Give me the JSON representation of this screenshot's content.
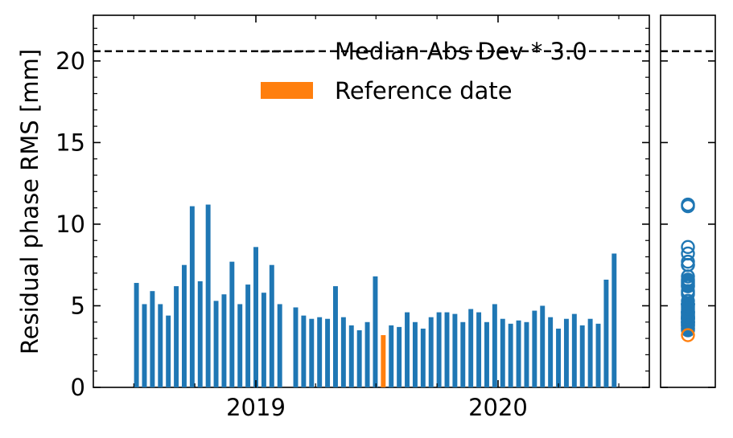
{
  "chart_data": {
    "type": "bar",
    "ylabel": "Residual phase RMS [mm]",
    "xlabel": "",
    "ylim": [
      0,
      22.8
    ],
    "xlim": [
      "2018-05-01",
      "2020-08-16"
    ],
    "yticks": [
      0,
      5,
      10,
      15,
      20
    ],
    "xticks": [
      {
        "label": "2019",
        "date": "2019-01-01"
      },
      {
        "label": "2020",
        "date": "2020-01-01"
      }
    ],
    "grid": false,
    "legend_position": "top-right",
    "threshold": {
      "name": "Median Abs Dev * 3.0",
      "value": 20.6,
      "style": "dashed",
      "color": "#000000"
    },
    "reference": {
      "name": "Reference date",
      "date": "2019-07-12",
      "value": 3.2,
      "color": "#ff7f0e"
    },
    "series": [
      {
        "color": "#1f77b4",
        "points": [
          [
            "2018-07-05",
            6.4
          ],
          [
            "2018-07-17",
            5.1
          ],
          [
            "2018-07-29",
            5.9
          ],
          [
            "2018-08-10",
            5.1
          ],
          [
            "2018-08-22",
            4.4
          ],
          [
            "2018-09-03",
            6.2
          ],
          [
            "2018-09-15",
            7.5
          ],
          [
            "2018-09-27",
            11.1
          ],
          [
            "2018-10-09",
            6.5
          ],
          [
            "2018-10-21",
            11.2
          ],
          [
            "2018-11-02",
            5.3
          ],
          [
            "2018-11-14",
            5.7
          ],
          [
            "2018-11-26",
            7.7
          ],
          [
            "2018-12-08",
            5.1
          ],
          [
            "2018-12-20",
            6.3
          ],
          [
            "2019-01-01",
            8.6
          ],
          [
            "2019-01-13",
            5.8
          ],
          [
            "2019-01-25",
            7.5
          ],
          [
            "2019-02-06",
            5.1
          ],
          [
            "2019-03-02",
            4.9
          ],
          [
            "2019-03-14",
            4.4
          ],
          [
            "2019-03-26",
            4.2
          ],
          [
            "2019-04-07",
            4.3
          ],
          [
            "2019-04-19",
            4.2
          ],
          [
            "2019-05-01",
            6.2
          ],
          [
            "2019-05-13",
            4.3
          ],
          [
            "2019-05-25",
            3.8
          ],
          [
            "2019-06-06",
            3.5
          ],
          [
            "2019-06-18",
            4.0
          ],
          [
            "2019-06-30",
            6.8
          ],
          [
            "2019-07-24",
            3.8
          ],
          [
            "2019-08-05",
            3.7
          ],
          [
            "2019-08-17",
            4.6
          ],
          [
            "2019-08-29",
            4.0
          ],
          [
            "2019-09-10",
            3.6
          ],
          [
            "2019-09-22",
            4.3
          ],
          [
            "2019-10-04",
            4.6
          ],
          [
            "2019-10-16",
            4.6
          ],
          [
            "2019-10-28",
            4.5
          ],
          [
            "2019-11-09",
            4.0
          ],
          [
            "2019-11-21",
            4.8
          ],
          [
            "2019-12-03",
            4.6
          ],
          [
            "2019-12-15",
            4.0
          ],
          [
            "2019-12-27",
            5.1
          ],
          [
            "2020-01-08",
            4.2
          ],
          [
            "2020-01-20",
            3.9
          ],
          [
            "2020-02-01",
            4.1
          ],
          [
            "2020-02-13",
            4.0
          ],
          [
            "2020-02-25",
            4.7
          ],
          [
            "2020-03-08",
            5.0
          ],
          [
            "2020-03-20",
            4.3
          ],
          [
            "2020-04-01",
            3.6
          ],
          [
            "2020-04-13",
            4.2
          ],
          [
            "2020-04-25",
            4.5
          ],
          [
            "2020-05-07",
            3.8
          ],
          [
            "2020-05-19",
            4.2
          ],
          [
            "2020-05-31",
            3.9
          ],
          [
            "2020-06-12",
            6.6
          ],
          [
            "2020-06-24",
            8.2
          ]
        ]
      }
    ],
    "side_panel": {
      "type": "scatter",
      "marker": "open-circle",
      "values_from": "series and reference"
    }
  }
}
